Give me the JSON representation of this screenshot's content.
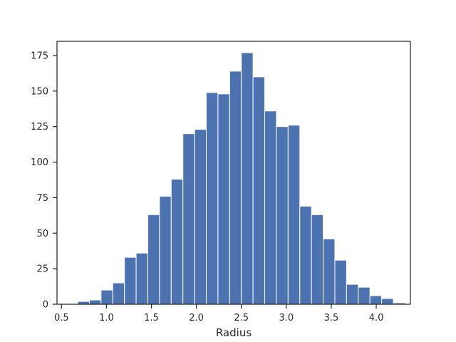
{
  "chart_data": {
    "type": "bar",
    "subtype": "histogram",
    "title": "",
    "xlabel": "Radius",
    "ylabel": "",
    "xlim": [
      0.45,
      4.38
    ],
    "ylim": [
      0,
      185
    ],
    "xticks": [
      0.5,
      1.0,
      1.5,
      2.0,
      2.5,
      3.0,
      3.5,
      4.0
    ],
    "xtick_labels": [
      "0.5",
      "1.0",
      "1.5",
      "2.0",
      "2.5",
      "3.0",
      "3.5",
      "4.0"
    ],
    "yticks": [
      0,
      25,
      50,
      75,
      100,
      125,
      150,
      175
    ],
    "ytick_labels": [
      "0",
      "25",
      "50",
      "75",
      "100",
      "125",
      "150",
      "175"
    ],
    "grid": false,
    "bar_color": "#4c72b0",
    "bins": [
      {
        "x0": 0.55,
        "x1": 0.68,
        "count": 0
      },
      {
        "x0": 0.68,
        "x1": 0.81,
        "count": 2
      },
      {
        "x0": 0.81,
        "x1": 0.94,
        "count": 3
      },
      {
        "x0": 0.94,
        "x1": 1.07,
        "count": 10
      },
      {
        "x0": 1.07,
        "x1": 1.2,
        "count": 15
      },
      {
        "x0": 1.2,
        "x1": 1.33,
        "count": 33
      },
      {
        "x0": 1.33,
        "x1": 1.46,
        "count": 36
      },
      {
        "x0": 1.46,
        "x1": 1.59,
        "count": 63
      },
      {
        "x0": 1.59,
        "x1": 1.72,
        "count": 76
      },
      {
        "x0": 1.72,
        "x1": 1.85,
        "count": 88
      },
      {
        "x0": 1.85,
        "x1": 1.98,
        "count": 120
      },
      {
        "x0": 1.98,
        "x1": 2.11,
        "count": 123
      },
      {
        "x0": 2.11,
        "x1": 2.24,
        "count": 149
      },
      {
        "x0": 2.24,
        "x1": 2.37,
        "count": 148
      },
      {
        "x0": 2.37,
        "x1": 2.5,
        "count": 164
      },
      {
        "x0": 2.5,
        "x1": 2.63,
        "count": 177
      },
      {
        "x0": 2.63,
        "x1": 2.76,
        "count": 160
      },
      {
        "x0": 2.76,
        "x1": 2.89,
        "count": 136
      },
      {
        "x0": 2.89,
        "x1": 3.02,
        "count": 125
      },
      {
        "x0": 3.02,
        "x1": 3.15,
        "count": 126
      },
      {
        "x0": 3.15,
        "x1": 3.28,
        "count": 69
      },
      {
        "x0": 3.28,
        "x1": 3.41,
        "count": 63
      },
      {
        "x0": 3.41,
        "x1": 3.54,
        "count": 46
      },
      {
        "x0": 3.54,
        "x1": 3.67,
        "count": 31
      },
      {
        "x0": 3.67,
        "x1": 3.8,
        "count": 14
      },
      {
        "x0": 3.8,
        "x1": 3.93,
        "count": 12
      },
      {
        "x0": 3.93,
        "x1": 4.06,
        "count": 6
      },
      {
        "x0": 4.06,
        "x1": 4.19,
        "count": 4
      },
      {
        "x0": 4.19,
        "x1": 4.32,
        "count": 1
      }
    ]
  }
}
